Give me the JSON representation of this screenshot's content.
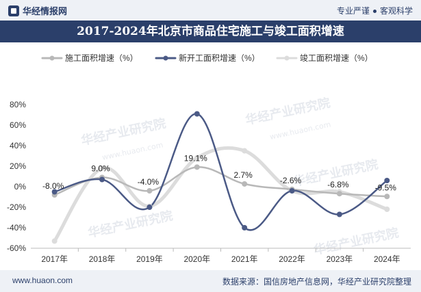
{
  "header": {
    "brand": "华经情报网",
    "slogan_left": "专业严谨",
    "slogan_right": "客观科学"
  },
  "footer": {
    "website": "www.huaon.com",
    "source": "数据来源：国信房地产信息网，华经产业研究院整理"
  },
  "watermark": {
    "brand_cn": "华经产业研究院",
    "brand_url": "www.huaon.com"
  },
  "colors": {
    "header_bg": "#2b3f6a",
    "light_bg": "#eef1f6",
    "series_construction": "#b8b8b8",
    "series_new": "#4b5a86",
    "series_completion": "#dcdcdc"
  },
  "chart_data": {
    "type": "line",
    "title": "2017-2024年北京市商品住宅施工与竣工面积增速",
    "categories": [
      "2017年",
      "2018年",
      "2019年",
      "2020年",
      "2021年",
      "2022年",
      "2023年",
      "2024年"
    ],
    "ylim": [
      -60,
      80
    ],
    "yticks": [
      "-60%",
      "-40%",
      "-20%",
      "0%",
      "20%",
      "40%",
      "60%",
      "80%"
    ],
    "series": [
      {
        "name": "施工面积增速（%）",
        "values": [
          -8.0,
          9.0,
          -4.0,
          19.1,
          2.7,
          -2.6,
          -6.8,
          -9.5
        ],
        "labels": [
          "-8.0%",
          "9.0%",
          "-4.0%",
          "19.1%",
          "2.7%",
          "-2.6%",
          "-6.8%",
          "-9.5%"
        ]
      },
      {
        "name": "新开工面积增速（%）",
        "values": [
          -5,
          7,
          -20,
          71,
          -40,
          -4,
          -27,
          6
        ]
      },
      {
        "name": "竣工面积增速（%）",
        "values": [
          -53,
          18,
          -19,
          28,
          35,
          -4,
          -5,
          -22
        ]
      }
    ]
  }
}
